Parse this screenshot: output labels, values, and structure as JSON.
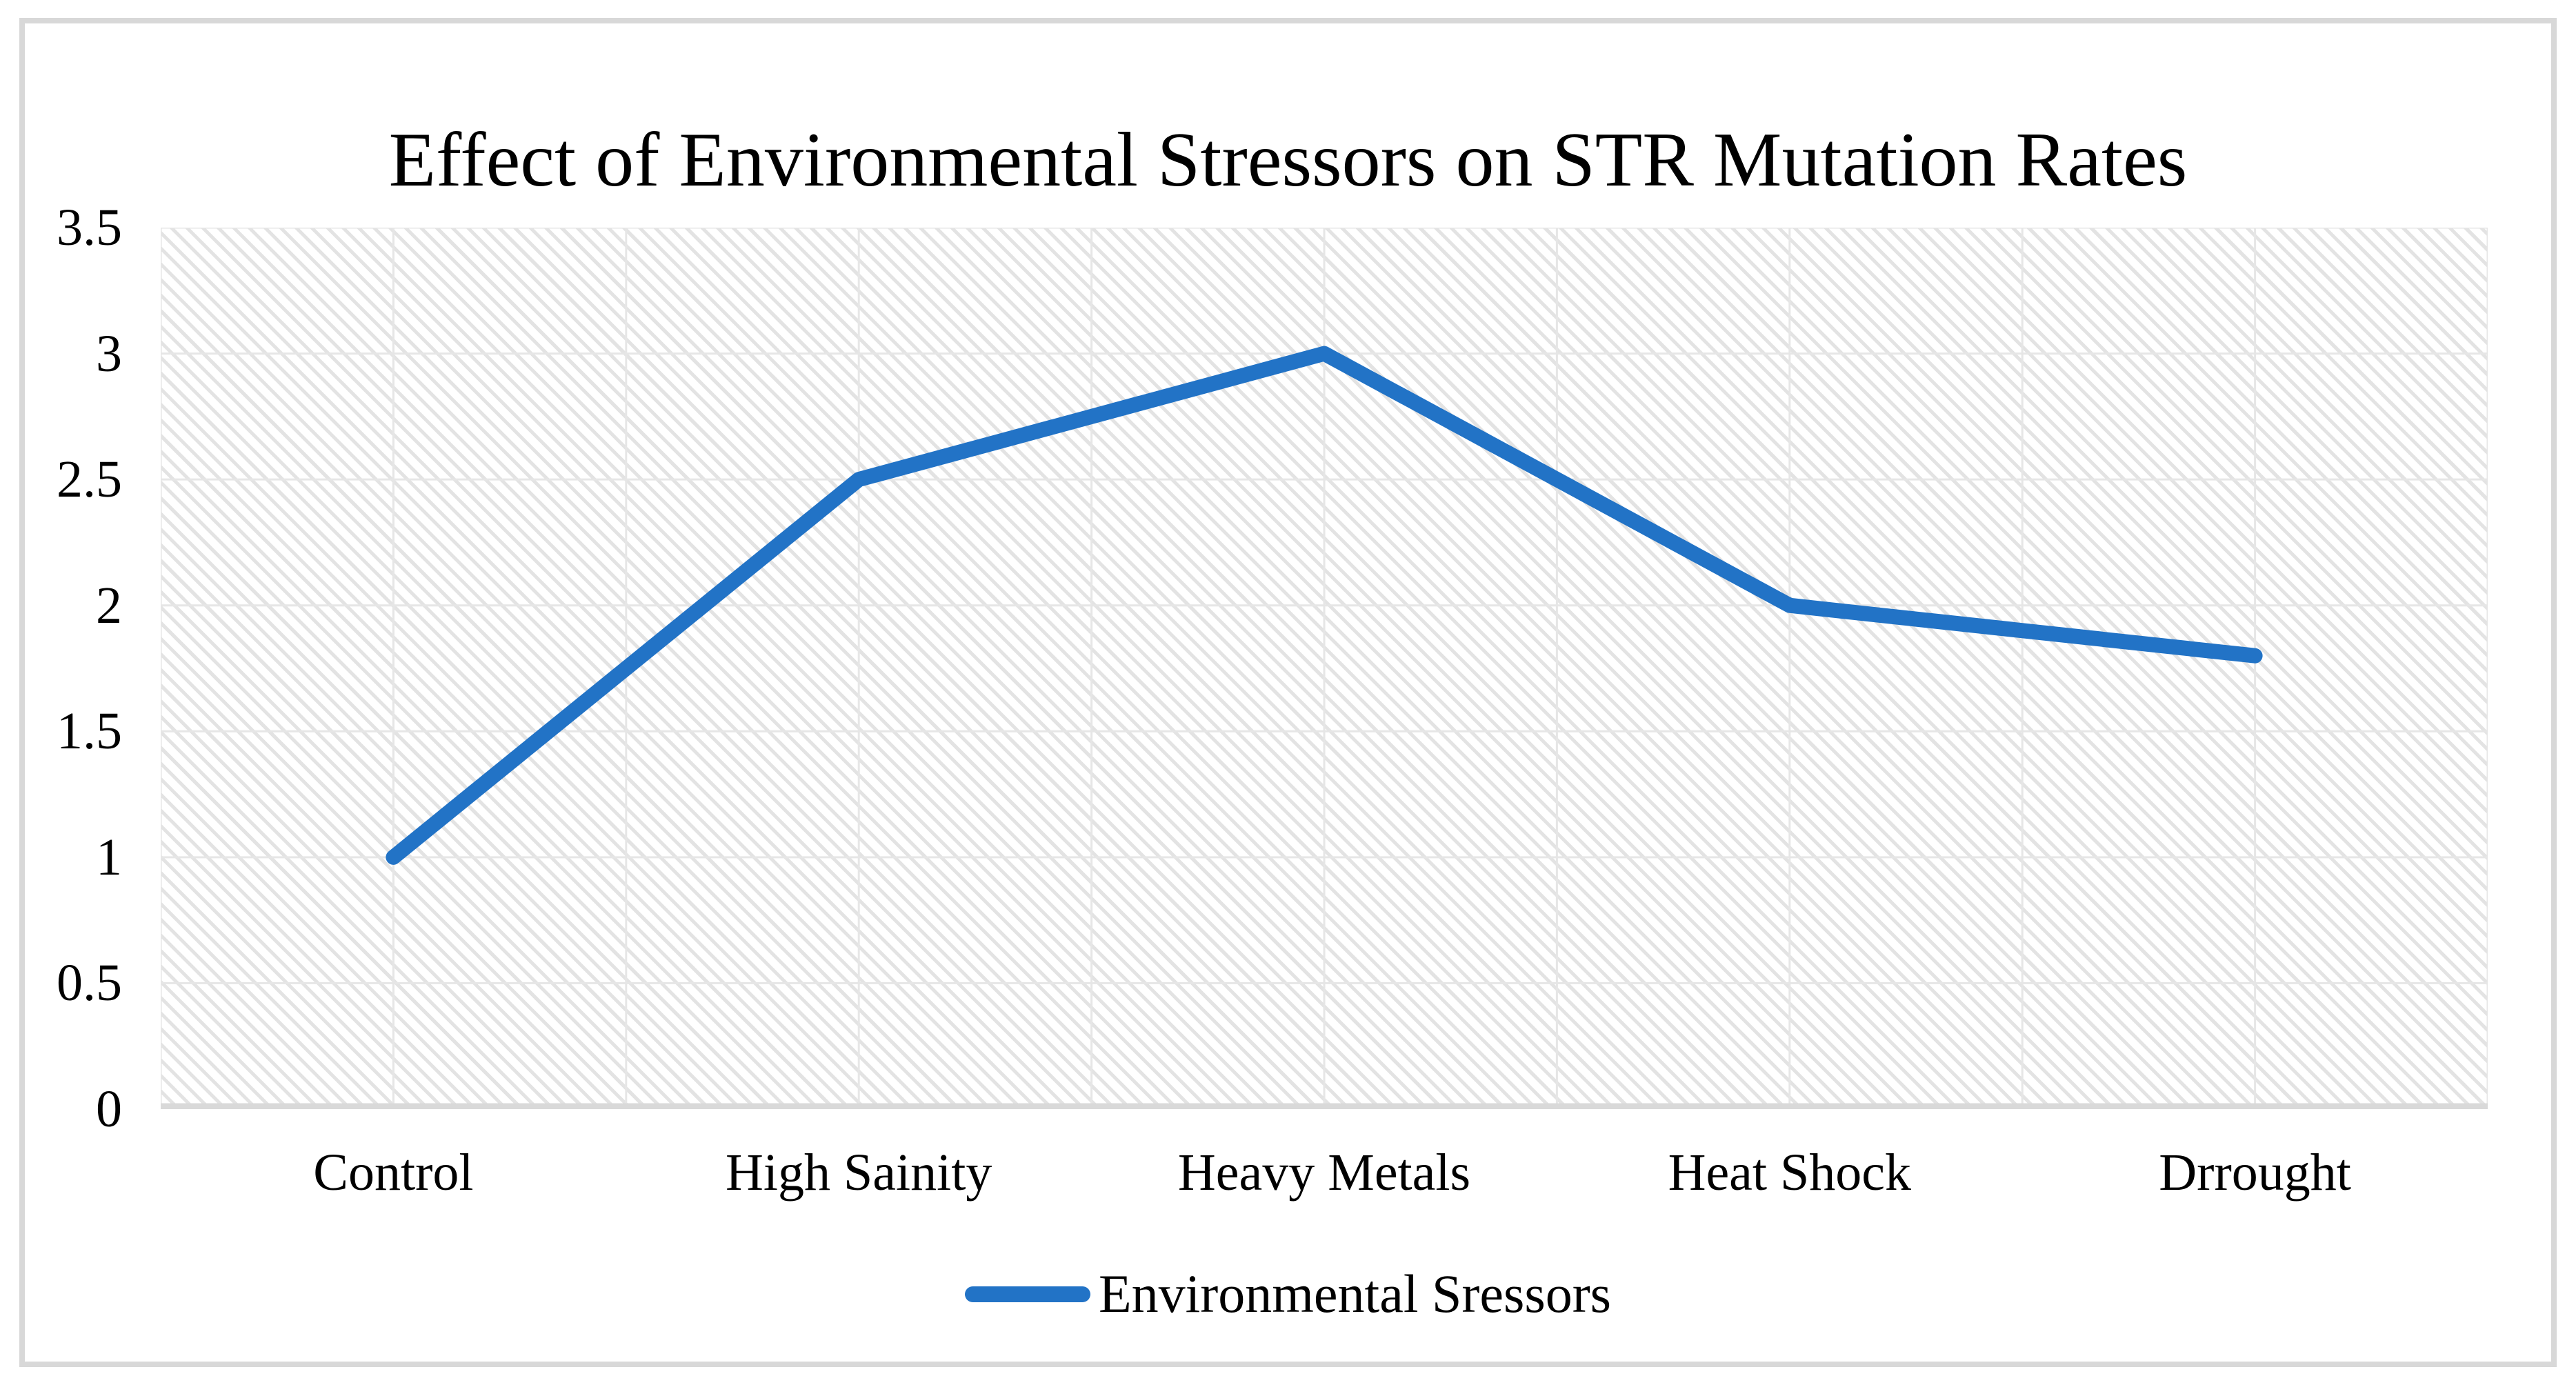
{
  "chart": {
    "title": "Effect of Environmental Stressors on STR Mutation Rates",
    "legend_label": "Environmental Sressors",
    "colors": {
      "line": "#2273c6",
      "gridline": "#e6e6e6",
      "axis_line": "#d9d9d9"
    }
  },
  "chart_data": {
    "type": "line",
    "title": "Effect of Environmental Stressors on STR Mutation Rates",
    "categories": [
      "Control",
      "High Sainity",
      "Heavy Metals",
      "Heat Shock",
      "Drrought"
    ],
    "series": [
      {
        "name": "Environmental Sressors",
        "values": [
          1,
          2.5,
          3,
          2,
          1.8
        ]
      }
    ],
    "xlabel": "",
    "ylabel": "",
    "ylim": [
      0,
      3.5
    ],
    "yticks": [
      0,
      0.5,
      1,
      1.5,
      2,
      2.5,
      3,
      3.5
    ],
    "ytick_labels": [
      "0",
      "0.5",
      "1",
      "1.5",
      "2",
      "2.5",
      "3",
      "3.5"
    ],
    "grid": true,
    "plot_background": "diagonal-hatch",
    "legend_position": "bottom",
    "legend_entries": [
      "Environmental Sressors"
    ]
  }
}
